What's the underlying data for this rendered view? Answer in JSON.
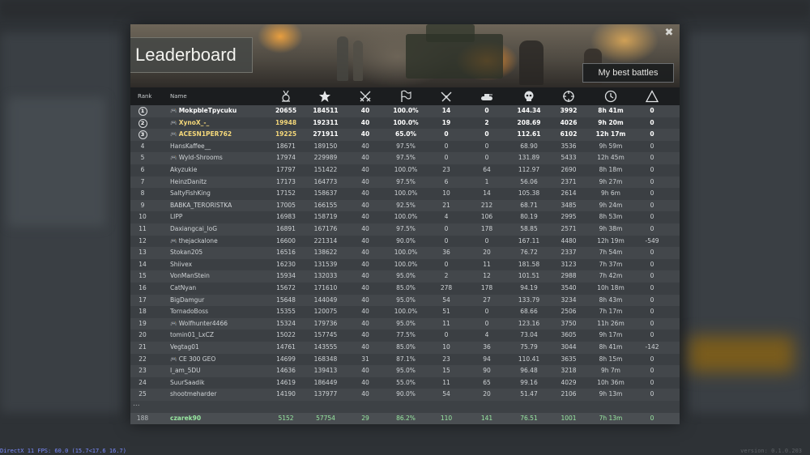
{
  "window": {
    "title": "Leaderboard",
    "best_battles_label": "My best battles",
    "close_glyph": "✖"
  },
  "overlay": {
    "fps_text": "DirectX 11 FPS: 60.0 (15.7<17.6 16.7)",
    "version_text": "version: 0.1.0.203"
  },
  "table": {
    "columns": [
      {
        "key": "rank",
        "label": "Rank",
        "icon": null
      },
      {
        "key": "name",
        "label": "Name",
        "icon": null
      },
      {
        "key": "score",
        "label": "",
        "icon": "medal-icon"
      },
      {
        "key": "exp",
        "label": "",
        "icon": "star-icon"
      },
      {
        "key": "battles",
        "label": "",
        "icon": "crossed-swords-icon"
      },
      {
        "key": "win_rate",
        "label": "",
        "icon": "flag-icon"
      },
      {
        "key": "kills",
        "label": "",
        "icon": "crossed-rifles-icon"
      },
      {
        "key": "tanks",
        "label": "",
        "icon": "tank-icon"
      },
      {
        "key": "avg",
        "label": "",
        "icon": "skull-icon"
      },
      {
        "key": "accuracy",
        "label": "",
        "icon": "crosshair-icon"
      },
      {
        "key": "time",
        "label": "",
        "icon": "clock-icon"
      },
      {
        "key": "delta",
        "label": "",
        "icon": "triangle-icon"
      }
    ],
    "rows": [
      {
        "rank": "1",
        "pad": true,
        "name": "MokpbleTpycuku",
        "score": "20655",
        "exp": "184511",
        "battles": "40",
        "win_rate": "100.0%",
        "kills": "14",
        "tanks": "0",
        "avg": "144.34",
        "accuracy": "3992",
        "time": "8h 41m",
        "delta": "0"
      },
      {
        "rank": "2",
        "pad": true,
        "name": "XynoX_-_",
        "score": "19948",
        "exp": "192311",
        "battles": "40",
        "win_rate": "100.0%",
        "kills": "19",
        "tanks": "2",
        "avg": "208.69",
        "accuracy": "4026",
        "time": "9h 20m",
        "delta": "0"
      },
      {
        "rank": "3",
        "pad": true,
        "name": "ACESN1PER762",
        "score": "19225",
        "exp": "271911",
        "battles": "40",
        "win_rate": "65.0%",
        "kills": "0",
        "tanks": "0",
        "avg": "112.61",
        "accuracy": "6102",
        "time": "12h 17m",
        "delta": "0"
      },
      {
        "rank": "4",
        "pad": false,
        "name": "HansKaffee__",
        "score": "18671",
        "exp": "189150",
        "battles": "40",
        "win_rate": "97.5%",
        "kills": "0",
        "tanks": "0",
        "avg": "68.90",
        "accuracy": "3536",
        "time": "9h 59m",
        "delta": "0"
      },
      {
        "rank": "5",
        "pad": true,
        "name": "Wyld-Shrooms",
        "score": "17974",
        "exp": "229989",
        "battles": "40",
        "win_rate": "97.5%",
        "kills": "0",
        "tanks": "0",
        "avg": "131.89",
        "accuracy": "5433",
        "time": "12h 45m",
        "delta": "0"
      },
      {
        "rank": "6",
        "pad": false,
        "name": "Akyzukie",
        "score": "17797",
        "exp": "151422",
        "battles": "40",
        "win_rate": "100.0%",
        "kills": "23",
        "tanks": "64",
        "avg": "112.97",
        "accuracy": "2690",
        "time": "8h 18m",
        "delta": "0"
      },
      {
        "rank": "7",
        "pad": false,
        "name": "HeinzDanitz",
        "score": "17173",
        "exp": "164773",
        "battles": "40",
        "win_rate": "97.5%",
        "kills": "6",
        "tanks": "1",
        "avg": "56.06",
        "accuracy": "2371",
        "time": "9h 27m",
        "delta": "0"
      },
      {
        "rank": "8",
        "pad": false,
        "name": "SaltyFishKing",
        "score": "17152",
        "exp": "158637",
        "battles": "40",
        "win_rate": "100.0%",
        "kills": "10",
        "tanks": "14",
        "avg": "105.38",
        "accuracy": "2614",
        "time": "9h 6m",
        "delta": "0"
      },
      {
        "rank": "9",
        "pad": false,
        "name": "BABKA_TERORISTKA",
        "score": "17005",
        "exp": "166155",
        "battles": "40",
        "win_rate": "92.5%",
        "kills": "21",
        "tanks": "212",
        "avg": "68.71",
        "accuracy": "3485",
        "time": "9h 24m",
        "delta": "0"
      },
      {
        "rank": "10",
        "pad": false,
        "name": "LIPP",
        "score": "16983",
        "exp": "158719",
        "battles": "40",
        "win_rate": "100.0%",
        "kills": "4",
        "tanks": "106",
        "avg": "80.19",
        "accuracy": "2995",
        "time": "8h 53m",
        "delta": "0"
      },
      {
        "rank": "11",
        "pad": false,
        "name": "Daxiangcai_loG",
        "score": "16891",
        "exp": "167176",
        "battles": "40",
        "win_rate": "97.5%",
        "kills": "0",
        "tanks": "178",
        "avg": "58.85",
        "accuracy": "2571",
        "time": "9h 38m",
        "delta": "0"
      },
      {
        "rank": "12",
        "pad": true,
        "name": "thejackalone",
        "score": "16600",
        "exp": "221314",
        "battles": "40",
        "win_rate": "90.0%",
        "kills": "0",
        "tanks": "0",
        "avg": "167.11",
        "accuracy": "4480",
        "time": "12h 19m",
        "delta": "-549"
      },
      {
        "rank": "13",
        "pad": false,
        "name": "Stokan205",
        "score": "16516",
        "exp": "138622",
        "battles": "40",
        "win_rate": "100.0%",
        "kills": "36",
        "tanks": "20",
        "avg": "76.72",
        "accuracy": "2337",
        "time": "7h 54m",
        "delta": "0"
      },
      {
        "rank": "14",
        "pad": false,
        "name": "Shiivex",
        "score": "16230",
        "exp": "131539",
        "battles": "40",
        "win_rate": "100.0%",
        "kills": "0",
        "tanks": "11",
        "avg": "181.58",
        "accuracy": "3123",
        "time": "7h 37m",
        "delta": "0"
      },
      {
        "rank": "15",
        "pad": false,
        "name": "VonManStein",
        "score": "15934",
        "exp": "132033",
        "battles": "40",
        "win_rate": "95.0%",
        "kills": "2",
        "tanks": "12",
        "avg": "101.51",
        "accuracy": "2988",
        "time": "7h 42m",
        "delta": "0"
      },
      {
        "rank": "16",
        "pad": false,
        "name": "CatNyan",
        "score": "15672",
        "exp": "171610",
        "battles": "40",
        "win_rate": "85.0%",
        "kills": "278",
        "tanks": "178",
        "avg": "94.19",
        "accuracy": "3540",
        "time": "10h 18m",
        "delta": "0"
      },
      {
        "rank": "17",
        "pad": false,
        "name": "BigDamgur",
        "score": "15648",
        "exp": "144049",
        "battles": "40",
        "win_rate": "95.0%",
        "kills": "54",
        "tanks": "27",
        "avg": "133.79",
        "accuracy": "3234",
        "time": "8h 43m",
        "delta": "0"
      },
      {
        "rank": "18",
        "pad": false,
        "name": "TornadoBoss",
        "score": "15355",
        "exp": "120075",
        "battles": "40",
        "win_rate": "100.0%",
        "kills": "51",
        "tanks": "0",
        "avg": "68.66",
        "accuracy": "2506",
        "time": "7h 17m",
        "delta": "0"
      },
      {
        "rank": "19",
        "pad": true,
        "name": "Wolfhunter4466",
        "score": "15324",
        "exp": "179736",
        "battles": "40",
        "win_rate": "95.0%",
        "kills": "11",
        "tanks": "0",
        "avg": "123.16",
        "accuracy": "3750",
        "time": "11h 26m",
        "delta": "0"
      },
      {
        "rank": "20",
        "pad": false,
        "name": "tomin01_LxCZ",
        "score": "15022",
        "exp": "157745",
        "battles": "40",
        "win_rate": "77.5%",
        "kills": "0",
        "tanks": "4",
        "avg": "73.04",
        "accuracy": "3605",
        "time": "9h 17m",
        "delta": "0"
      },
      {
        "rank": "21",
        "pad": false,
        "name": "Vegtag01",
        "score": "14761",
        "exp": "143555",
        "battles": "40",
        "win_rate": "85.0%",
        "kills": "10",
        "tanks": "36",
        "avg": "75.79",
        "accuracy": "3044",
        "time": "8h 41m",
        "delta": "-142"
      },
      {
        "rank": "22",
        "pad": true,
        "name": "CE 300 GEO",
        "score": "14699",
        "exp": "168348",
        "battles": "31",
        "win_rate": "87.1%",
        "kills": "23",
        "tanks": "94",
        "avg": "110.41",
        "accuracy": "3635",
        "time": "8h 15m",
        "delta": "0"
      },
      {
        "rank": "23",
        "pad": false,
        "name": "I_am_5DU",
        "score": "14636",
        "exp": "139413",
        "battles": "40",
        "win_rate": "95.0%",
        "kills": "15",
        "tanks": "90",
        "avg": "96.48",
        "accuracy": "3218",
        "time": "9h 7m",
        "delta": "0"
      },
      {
        "rank": "24",
        "pad": false,
        "name": "SuurSaadik",
        "score": "14619",
        "exp": "186449",
        "battles": "40",
        "win_rate": "55.0%",
        "kills": "11",
        "tanks": "65",
        "avg": "99.16",
        "accuracy": "4029",
        "time": "10h 36m",
        "delta": "0"
      },
      {
        "rank": "25",
        "pad": false,
        "name": "shootmeharder",
        "score": "14190",
        "exp": "137977",
        "battles": "40",
        "win_rate": "90.0%",
        "kills": "54",
        "tanks": "20",
        "avg": "51.47",
        "accuracy": "2106",
        "time": "9h 13m",
        "delta": "0"
      }
    ],
    "ellipsis": "...",
    "me": {
      "rank": "188",
      "name": "czarek90",
      "score": "5152",
      "exp": "57754",
      "battles": "29",
      "win_rate": "86.2%",
      "kills": "110",
      "tanks": "141",
      "avg": "76.51",
      "accuracy": "1001",
      "time": "7h 13m",
      "delta": "0"
    }
  },
  "colors": {
    "gold_name": "#f5d87a",
    "me_row_text": "#97e6a0",
    "header_bg": "#1b1d1f",
    "panel_bg": "#3d4145"
  }
}
